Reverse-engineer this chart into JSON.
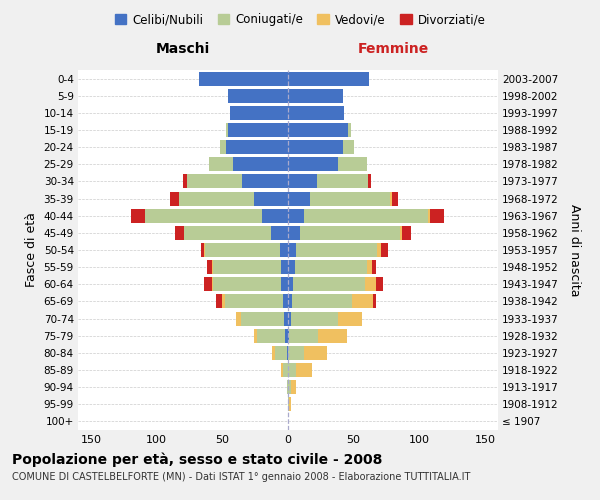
{
  "age_groups": [
    "100+",
    "95-99",
    "90-94",
    "85-89",
    "80-84",
    "75-79",
    "70-74",
    "65-69",
    "60-64",
    "55-59",
    "50-54",
    "45-49",
    "40-44",
    "35-39",
    "30-34",
    "25-29",
    "20-24",
    "15-19",
    "10-14",
    "5-9",
    "0-4"
  ],
  "birth_years": [
    "≤ 1907",
    "1908-1912",
    "1913-1917",
    "1918-1922",
    "1923-1927",
    "1928-1932",
    "1933-1937",
    "1938-1942",
    "1943-1947",
    "1948-1952",
    "1953-1957",
    "1958-1962",
    "1963-1967",
    "1968-1972",
    "1973-1977",
    "1978-1982",
    "1983-1987",
    "1988-1992",
    "1993-1997",
    "1998-2002",
    "2003-2007"
  ],
  "maschi": {
    "celibi": [
      0,
      0,
      0,
      0,
      1,
      2,
      3,
      4,
      5,
      5,
      6,
      13,
      20,
      26,
      35,
      42,
      47,
      46,
      44,
      46,
      68
    ],
    "coniugati": [
      0,
      0,
      1,
      4,
      9,
      22,
      33,
      44,
      52,
      52,
      57,
      66,
      89,
      57,
      42,
      18,
      5,
      1,
      0,
      0,
      0
    ],
    "vedovi": [
      0,
      0,
      0,
      1,
      2,
      2,
      4,
      2,
      1,
      1,
      1,
      0,
      0,
      0,
      0,
      0,
      0,
      0,
      0,
      0,
      0
    ],
    "divorziati": [
      0,
      0,
      0,
      0,
      0,
      0,
      0,
      5,
      6,
      4,
      2,
      7,
      11,
      7,
      3,
      0,
      0,
      0,
      0,
      0,
      0
    ]
  },
  "femmine": {
    "nubili": [
      0,
      0,
      0,
      0,
      0,
      1,
      2,
      3,
      4,
      5,
      6,
      9,
      12,
      17,
      22,
      38,
      42,
      46,
      43,
      42,
      62
    ],
    "coniugate": [
      0,
      1,
      2,
      6,
      12,
      22,
      36,
      46,
      55,
      55,
      62,
      76,
      95,
      61,
      39,
      22,
      8,
      2,
      0,
      0,
      0
    ],
    "vedove": [
      0,
      1,
      4,
      12,
      18,
      22,
      18,
      16,
      8,
      4,
      3,
      2,
      1,
      1,
      0,
      0,
      0,
      0,
      0,
      0,
      0
    ],
    "divorziate": [
      0,
      0,
      0,
      0,
      0,
      0,
      0,
      2,
      5,
      3,
      5,
      7,
      11,
      5,
      2,
      0,
      0,
      0,
      0,
      0,
      0
    ]
  },
  "colors": {
    "celibi": "#4472c4",
    "coniugati": "#b8cc96",
    "vedovi": "#f0c060",
    "divorziati": "#cc2222"
  },
  "xlim": 160,
  "title": "Popolazione per età, sesso e stato civile - 2008",
  "subtitle": "COMUNE DI CASTELBELFORTE (MN) - Dati ISTAT 1° gennaio 2008 - Elaborazione TUTTITALIA.IT",
  "ylabel_left": "Fasce di età",
  "ylabel_right": "Anni di nascita",
  "xlabel_left": "Maschi",
  "xlabel_right": "Femmine",
  "bg_color": "#f0f0f0",
  "plot_bg_color": "#ffffff"
}
